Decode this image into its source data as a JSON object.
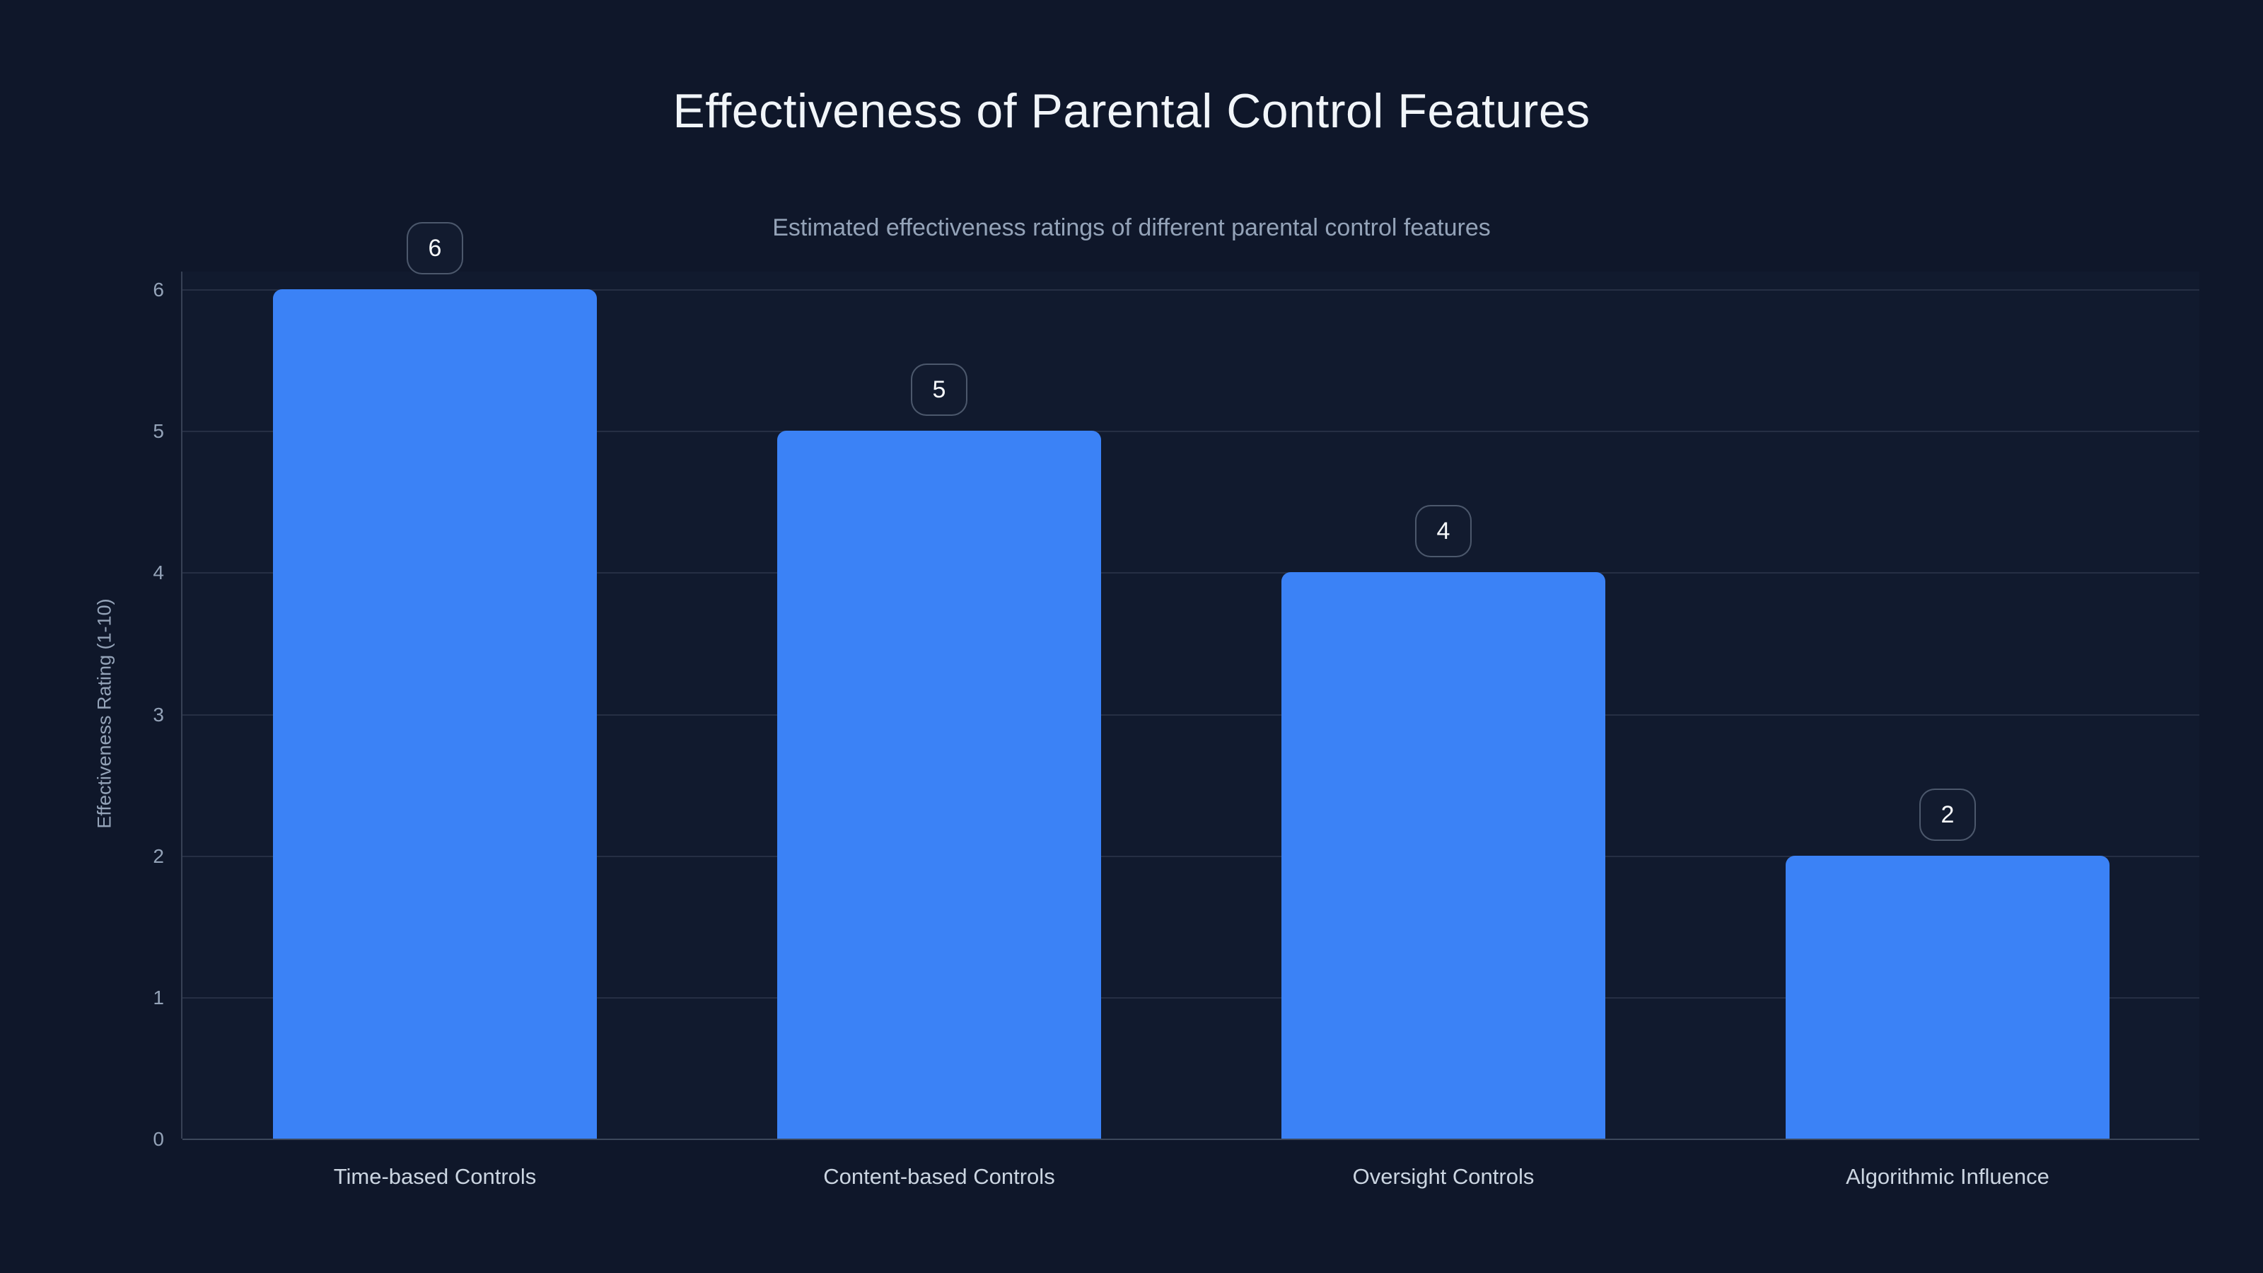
{
  "page": {
    "background_color": "#0f172a"
  },
  "chart_data": {
    "type": "bar",
    "title": "Effectiveness of Parental Control Features",
    "subtitle": "Estimated effectiveness ratings of different parental control features",
    "categories": [
      "Time-based Controls",
      "Content-based Controls",
      "Oversight Controls",
      "Algorithmic Influence"
    ],
    "values": [
      6,
      5,
      4,
      2
    ],
    "value_labels": [
      "6",
      "5",
      "4",
      "2"
    ],
    "xlabel": "",
    "ylabel": "Effectiveness Rating (1-10)",
    "ylim": [
      0,
      6
    ],
    "yticks": [
      "0",
      "1",
      "2",
      "3",
      "4",
      "5",
      "6"
    ],
    "grid": true,
    "legend": false,
    "bar_color": "#3b82f6",
    "title_color": "#f1f5f9",
    "subtitle_color": "#94a3b8",
    "axis_label_color": "#94a3b8",
    "category_label_color": "#cbd5e1"
  }
}
